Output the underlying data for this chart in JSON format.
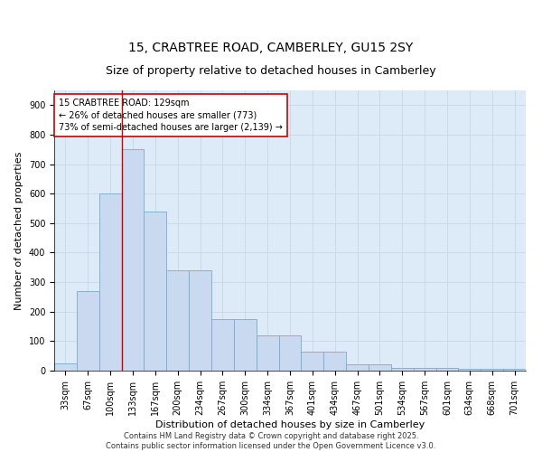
{
  "title_line1": "15, CRABTREE ROAD, CAMBERLEY, GU15 2SY",
  "title_line2": "Size of property relative to detached houses in Camberley",
  "xlabel": "Distribution of detached houses by size in Camberley",
  "ylabel": "Number of detached properties",
  "categories": [
    "33sqm",
    "67sqm",
    "100sqm",
    "133sqm",
    "167sqm",
    "200sqm",
    "234sqm",
    "267sqm",
    "300sqm",
    "334sqm",
    "367sqm",
    "401sqm",
    "434sqm",
    "467sqm",
    "501sqm",
    "534sqm",
    "567sqm",
    "601sqm",
    "634sqm",
    "668sqm",
    "701sqm"
  ],
  "values": [
    25,
    270,
    600,
    750,
    540,
    340,
    340,
    175,
    175,
    120,
    120,
    65,
    65,
    20,
    20,
    10,
    10,
    10,
    5,
    5,
    5
  ],
  "bar_color": "#c9d9f0",
  "bar_edge_color": "#7aaad0",
  "grid_color": "#c8d8e8",
  "background_color": "#ddeaf8",
  "vline_color": "#cc0000",
  "vline_x_index": 3,
  "annotation_text": "15 CRABTREE ROAD: 129sqm\n← 26% of detached houses are smaller (773)\n73% of semi-detached houses are larger (2,139) →",
  "annotation_box_color": "#cc0000",
  "ylim": [
    0,
    950
  ],
  "yticks": [
    0,
    100,
    200,
    300,
    400,
    500,
    600,
    700,
    800,
    900
  ],
  "footnote": "Contains HM Land Registry data © Crown copyright and database right 2025.\nContains public sector information licensed under the Open Government Licence v3.0.",
  "title_fontsize": 10,
  "subtitle_fontsize": 9,
  "axis_label_fontsize": 8,
  "tick_fontsize": 7,
  "annotation_fontsize": 7,
  "footnote_fontsize": 6
}
